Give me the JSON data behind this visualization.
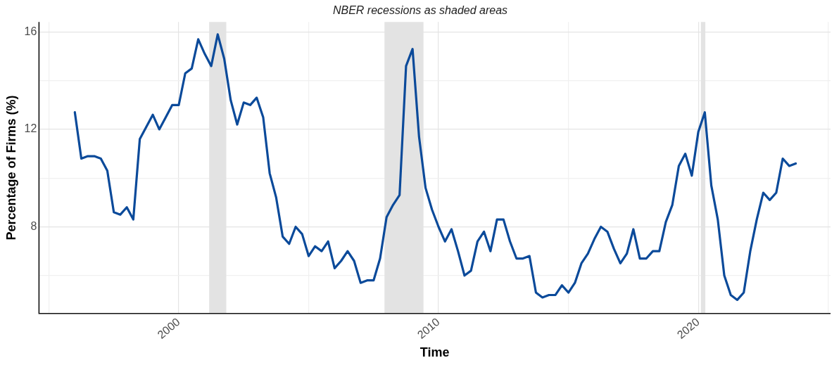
{
  "chart_data": {
    "type": "line",
    "title": "NBER recessions as shaded areas",
    "xlabel": "Time",
    "ylabel": "Percentage of Firms (%)",
    "x": [
      1996.0,
      1996.25,
      1996.5,
      1996.75,
      1997.0,
      1997.25,
      1997.5,
      1997.75,
      1998.0,
      1998.25,
      1998.5,
      1998.75,
      1999.0,
      1999.25,
      1999.5,
      1999.75,
      2000.0,
      2000.25,
      2000.5,
      2000.75,
      2001.0,
      2001.25,
      2001.5,
      2001.75,
      2002.0,
      2002.25,
      2002.5,
      2002.75,
      2003.0,
      2003.25,
      2003.5,
      2003.75,
      2004.0,
      2004.25,
      2004.5,
      2004.75,
      2005.0,
      2005.25,
      2005.5,
      2005.75,
      2006.0,
      2006.25,
      2006.5,
      2006.75,
      2007.0,
      2007.25,
      2007.5,
      2007.75,
      2008.0,
      2008.25,
      2008.5,
      2008.75,
      2009.0,
      2009.25,
      2009.5,
      2009.75,
      2010.0,
      2010.25,
      2010.5,
      2010.75,
      2011.0,
      2011.25,
      2011.5,
      2011.75,
      2012.0,
      2012.25,
      2012.5,
      2012.75,
      2013.0,
      2013.25,
      2013.5,
      2013.75,
      2014.0,
      2014.25,
      2014.5,
      2014.75,
      2015.0,
      2015.25,
      2015.5,
      2015.75,
      2016.0,
      2016.25,
      2016.5,
      2016.75,
      2017.0,
      2017.25,
      2017.5,
      2017.75,
      2018.0,
      2018.25,
      2018.5,
      2018.75,
      2019.0,
      2019.25,
      2019.5,
      2019.75,
      2020.0,
      2020.25,
      2020.5,
      2020.75,
      2021.0,
      2021.25,
      2021.5,
      2021.75,
      2022.0,
      2022.25,
      2022.5,
      2022.75,
      2023.0,
      2023.25,
      2023.5,
      2023.75
    ],
    "series": [
      {
        "color": "#0b4a9a",
        "values": [
          12.7,
          10.8,
          10.9,
          10.9,
          10.8,
          10.3,
          8.6,
          8.5,
          8.8,
          8.3,
          11.6,
          12.1,
          12.6,
          12.0,
          12.5,
          13.0,
          13.0,
          14.3,
          14.5,
          15.7,
          15.1,
          14.6,
          15.9,
          14.9,
          13.2,
          12.2,
          13.1,
          13.0,
          13.3,
          12.5,
          10.2,
          9.2,
          7.6,
          7.3,
          8.0,
          7.7,
          6.8,
          7.2,
          7.0,
          7.4,
          6.3,
          6.6,
          7.0,
          6.6,
          5.7,
          5.8,
          5.8,
          6.7,
          8.4,
          8.9,
          9.3,
          14.6,
          15.3,
          11.7,
          9.6,
          8.7,
          8.0,
          7.4,
          7.9,
          7.0,
          6.0,
          6.2,
          7.4,
          7.8,
          7.0,
          8.3,
          8.3,
          7.4,
          6.7,
          6.7,
          6.8,
          5.3,
          5.1,
          5.2,
          5.2,
          5.6,
          5.3,
          5.7,
          6.5,
          6.9,
          7.5,
          8.0,
          7.8,
          7.1,
          6.5,
          6.9,
          7.9,
          6.7,
          6.7,
          7.0,
          7.0,
          8.2,
          8.9,
          10.5,
          11.0,
          10.1,
          11.9,
          12.7,
          9.7,
          8.3,
          6.0,
          5.2,
          5.0,
          5.3,
          7.0,
          8.3,
          9.4,
          9.1,
          9.4,
          10.8,
          10.5,
          10.6
        ]
      }
    ],
    "xlim": [
      1994.62,
      2025.09
    ],
    "xticks": [
      {
        "value": 1995,
        "label": null
      },
      2000,
      {
        "value": 2005,
        "label": null
      },
      2010,
      {
        "value": 2015,
        "label": null
      },
      2020,
      {
        "value": 2025,
        "label": null
      }
    ],
    "ylim": [
      4.44,
      16.41
    ],
    "yticks": [
      {
        "value": 6,
        "label": null
      },
      8,
      {
        "value": 10,
        "label": null
      },
      12,
      {
        "value": 14,
        "label": null
      },
      16
    ],
    "bands": [
      {
        "axis": "x",
        "from": 2001.17,
        "to": 2001.83,
        "color": "#e3e3e3"
      },
      {
        "axis": "x",
        "from": 2007.92,
        "to": 2009.42,
        "color": "#e3e3e3"
      },
      {
        "axis": "x",
        "from": 2020.1,
        "to": 2020.27,
        "color": "#e3e3e3"
      }
    ],
    "grid": true,
    "legend": false,
    "marker": "none",
    "line_style": "solid"
  }
}
